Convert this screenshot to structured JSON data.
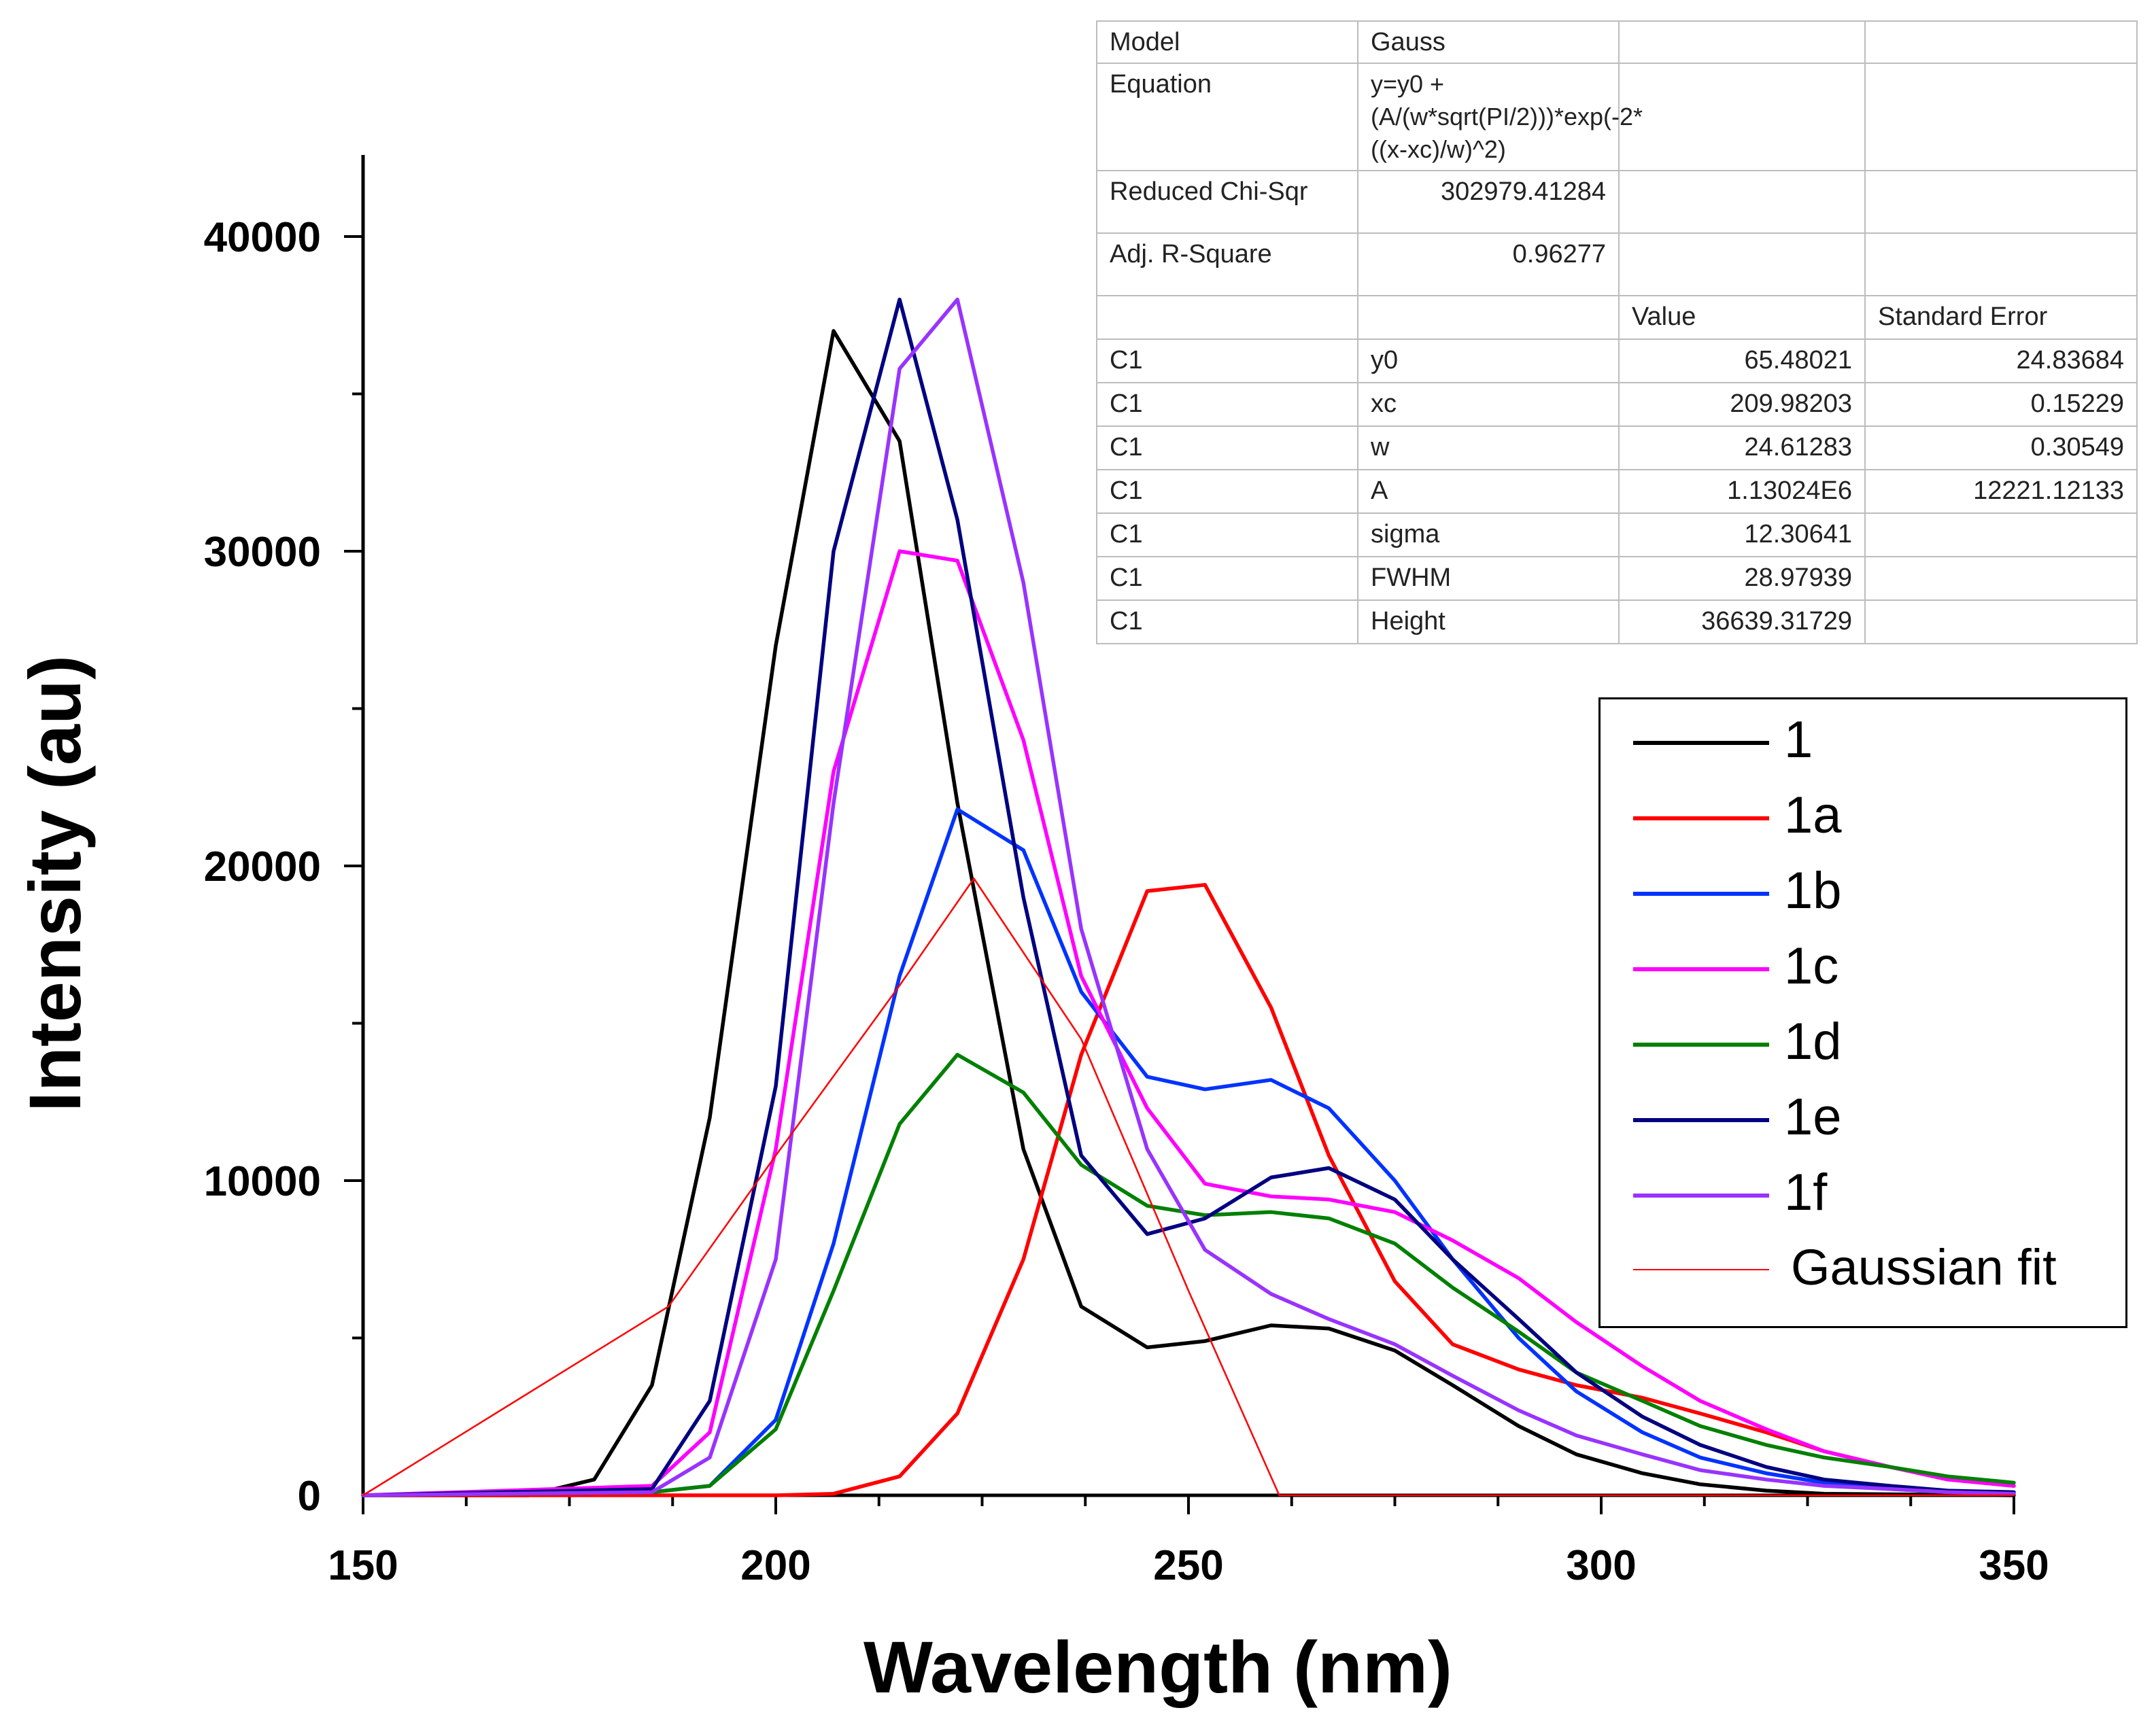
{
  "chart_data": {
    "type": "line",
    "xlabel": "Wavelength (nm)",
    "ylabel": "Intensity (au)",
    "xlim": [
      150,
      350
    ],
    "ylim": [
      0,
      42500
    ],
    "x_ticks": [
      "150",
      "200",
      "250",
      "300",
      "350"
    ],
    "y_ticks": [
      "0",
      "10000",
      "20000",
      "30000",
      "40000"
    ],
    "series": [
      {
        "name": "1",
        "color": "#000000",
        "points": [
          [
            150,
            0
          ],
          [
            170,
            0
          ],
          [
            178,
            500
          ],
          [
            185,
            3500
          ],
          [
            192,
            12000
          ],
          [
            200,
            27000
          ],
          [
            207,
            37000
          ],
          [
            215,
            33500
          ],
          [
            222,
            22000
          ],
          [
            230,
            11000
          ],
          [
            237,
            6000
          ],
          [
            245,
            4700
          ],
          [
            252,
            4900
          ],
          [
            260,
            5400
          ],
          [
            267,
            5300
          ],
          [
            275,
            4600
          ],
          [
            282,
            3500
          ],
          [
            290,
            2200
          ],
          [
            297,
            1300
          ],
          [
            305,
            700
          ],
          [
            312,
            350
          ],
          [
            320,
            150
          ],
          [
            327,
            50
          ],
          [
            350,
            0
          ]
        ]
      },
      {
        "name": "1a",
        "color": "#ff0000",
        "points": [
          [
            150,
            0
          ],
          [
            200,
            0
          ],
          [
            207,
            50
          ],
          [
            215,
            600
          ],
          [
            222,
            2600
          ],
          [
            230,
            7500
          ],
          [
            237,
            14000
          ],
          [
            245,
            19200
          ],
          [
            252,
            19400
          ],
          [
            260,
            15500
          ],
          [
            267,
            10800
          ],
          [
            275,
            6800
          ],
          [
            282,
            4800
          ],
          [
            290,
            4000
          ],
          [
            297,
            3500
          ],
          [
            305,
            3100
          ],
          [
            312,
            2600
          ],
          [
            320,
            2000
          ],
          [
            327,
            1400
          ],
          [
            335,
            900
          ],
          [
            342,
            500
          ],
          [
            350,
            300
          ]
        ]
      },
      {
        "name": "1b",
        "color": "#0033ff",
        "points": [
          [
            150,
            0
          ],
          [
            185,
            100
          ],
          [
            192,
            300
          ],
          [
            200,
            2400
          ],
          [
            207,
            8000
          ],
          [
            215,
            16500
          ],
          [
            222,
            21800
          ],
          [
            230,
            20500
          ],
          [
            237,
            16000
          ],
          [
            245,
            13300
          ],
          [
            252,
            12900
          ],
          [
            260,
            13200
          ],
          [
            267,
            12300
          ],
          [
            275,
            10000
          ],
          [
            282,
            7500
          ],
          [
            290,
            5000
          ],
          [
            297,
            3300
          ],
          [
            305,
            2000
          ],
          [
            312,
            1200
          ],
          [
            320,
            700
          ],
          [
            327,
            400
          ],
          [
            335,
            200
          ],
          [
            342,
            100
          ],
          [
            350,
            50
          ]
        ]
      },
      {
        "name": "1c",
        "color": "#ff00ff",
        "points": [
          [
            150,
            0
          ],
          [
            185,
            300
          ],
          [
            192,
            2000
          ],
          [
            200,
            11000
          ],
          [
            207,
            23000
          ],
          [
            215,
            30000
          ],
          [
            222,
            29700
          ],
          [
            230,
            24000
          ],
          [
            237,
            16500
          ],
          [
            245,
            12300
          ],
          [
            252,
            9900
          ],
          [
            260,
            9500
          ],
          [
            267,
            9400
          ],
          [
            275,
            9000
          ],
          [
            282,
            8100
          ],
          [
            290,
            6900
          ],
          [
            297,
            5500
          ],
          [
            305,
            4100
          ],
          [
            312,
            3000
          ],
          [
            320,
            2100
          ],
          [
            327,
            1400
          ],
          [
            335,
            900
          ],
          [
            342,
            500
          ],
          [
            350,
            300
          ]
        ]
      },
      {
        "name": "1d",
        "color": "#008000",
        "points": [
          [
            150,
            0
          ],
          [
            185,
            100
          ],
          [
            192,
            300
          ],
          [
            200,
            2100
          ],
          [
            207,
            6500
          ],
          [
            215,
            11800
          ],
          [
            222,
            14000
          ],
          [
            230,
            12800
          ],
          [
            237,
            10500
          ],
          [
            245,
            9200
          ],
          [
            252,
            8900
          ],
          [
            260,
            9000
          ],
          [
            267,
            8800
          ],
          [
            275,
            8000
          ],
          [
            282,
            6600
          ],
          [
            290,
            5200
          ],
          [
            297,
            3900
          ],
          [
            305,
            3000
          ],
          [
            312,
            2200
          ],
          [
            320,
            1600
          ],
          [
            327,
            1200
          ],
          [
            335,
            900
          ],
          [
            342,
            600
          ],
          [
            350,
            400
          ]
        ]
      },
      {
        "name": "1e",
        "color": "#000080",
        "points": [
          [
            150,
            0
          ],
          [
            185,
            200
          ],
          [
            192,
            3000
          ],
          [
            200,
            13000
          ],
          [
            207,
            30000
          ],
          [
            215,
            38000
          ],
          [
            222,
            31000
          ],
          [
            230,
            19000
          ],
          [
            237,
            10800
          ],
          [
            245,
            8300
          ],
          [
            252,
            8800
          ],
          [
            260,
            10100
          ],
          [
            267,
            10400
          ],
          [
            275,
            9400
          ],
          [
            282,
            7500
          ],
          [
            290,
            5600
          ],
          [
            297,
            3900
          ],
          [
            305,
            2500
          ],
          [
            312,
            1600
          ],
          [
            320,
            900
          ],
          [
            327,
            500
          ],
          [
            335,
            300
          ],
          [
            342,
            150
          ],
          [
            350,
            100
          ]
        ]
      },
      {
        "name": "1f",
        "color": "#9933ff",
        "points": [
          [
            150,
            0
          ],
          [
            185,
            100
          ],
          [
            192,
            1200
          ],
          [
            200,
            7500
          ],
          [
            207,
            22000
          ],
          [
            215,
            35800
          ],
          [
            222,
            38000
          ],
          [
            230,
            29000
          ],
          [
            237,
            18000
          ],
          [
            245,
            11000
          ],
          [
            252,
            7800
          ],
          [
            260,
            6400
          ],
          [
            267,
            5600
          ],
          [
            275,
            4800
          ],
          [
            282,
            3800
          ],
          [
            290,
            2700
          ],
          [
            297,
            1900
          ],
          [
            305,
            1300
          ],
          [
            312,
            800
          ],
          [
            320,
            500
          ],
          [
            327,
            300
          ],
          [
            335,
            200
          ],
          [
            342,
            100
          ],
          [
            350,
            50
          ]
        ]
      },
      {
        "name": "Gaussian fit",
        "color": "#ff0000",
        "thin": true,
        "points": [
          [
            150,
            0
          ],
          [
            187,
            6000
          ],
          [
            200,
            10800
          ],
          [
            215,
            16200
          ],
          [
            224,
            19600
          ],
          [
            237,
            14500
          ],
          [
            250,
            6500
          ],
          [
            261,
            0
          ],
          [
            350,
            0
          ]
        ]
      }
    ]
  },
  "fit_table": {
    "rows": [
      [
        "Model",
        "Gauss",
        "",
        ""
      ],
      [
        "Equation",
        "y=y0 + (A/(w*sqrt(PI/2)))*exp(-2*((x-xc)/w)^2)",
        "",
        ""
      ],
      [
        "Reduced Chi-Sqr",
        "302979.41284",
        "",
        ""
      ],
      [
        "Adj. R-Square",
        "0.96277",
        "",
        ""
      ],
      [
        "",
        "",
        "Value",
        "Standard Error"
      ],
      [
        "C1",
        "y0",
        "65.48021",
        "24.83684"
      ],
      [
        "C1",
        "xc",
        "209.98203",
        "0.15229"
      ],
      [
        "C1",
        "w",
        "24.61283",
        "0.30549"
      ],
      [
        "C1",
        "A",
        "1.13024E6",
        "12221.12133"
      ],
      [
        "C1",
        "sigma",
        "12.30641",
        ""
      ],
      [
        "C1",
        "FWHM",
        "28.97939",
        ""
      ],
      [
        "C1",
        "Height",
        "36639.31729",
        ""
      ]
    ]
  }
}
